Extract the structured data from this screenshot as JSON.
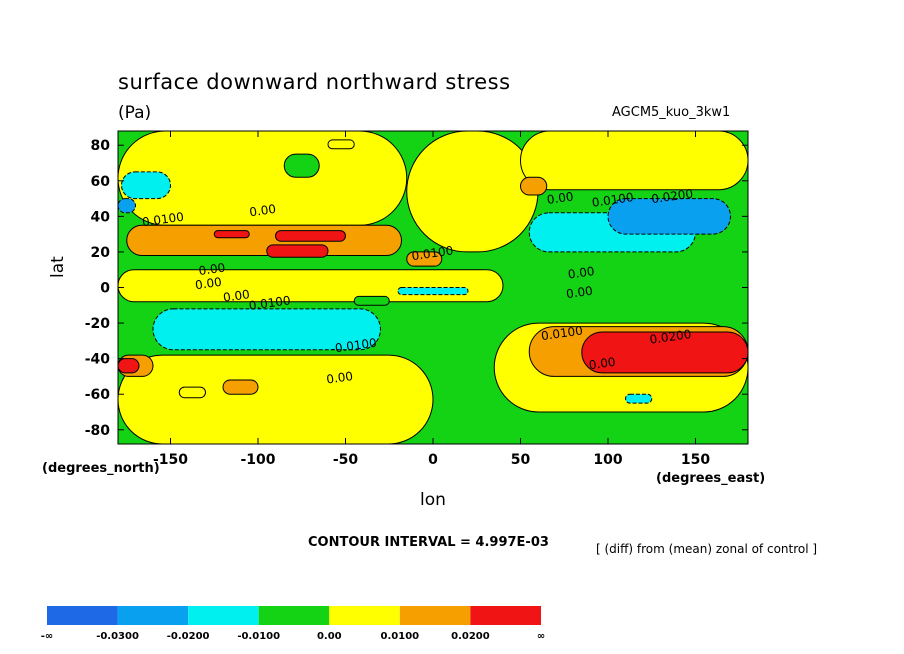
{
  "chart_data": {
    "type": "heatmap",
    "title": "surface downward northward stress",
    "units": "(Pa)",
    "model_label": "AGCM5_kuo_3kw1",
    "xlabel": "lon",
    "ylabel": "lat",
    "x_unit_label": "(degrees_east)",
    "y_unit_label": "(degrees_north)",
    "xlim": [
      -180,
      180
    ],
    "ylim": [
      -88,
      88
    ],
    "x_ticks": [
      -150,
      -100,
      -50,
      0,
      50,
      100,
      150
    ],
    "x_tick_labels": [
      "-150",
      "-100",
      "-50",
      "0",
      "50",
      "100",
      "150"
    ],
    "y_ticks": [
      80,
      60,
      40,
      20,
      0,
      -20,
      -40,
      -60,
      -80
    ],
    "y_tick_labels": [
      "80",
      "60",
      "40",
      "20",
      "0",
      "-20",
      "-40",
      "-60",
      "-80"
    ],
    "contour_interval_text": "CONTOUR INTERVAL = 4.997E-03",
    "note": "[ (diff) from (mean) zonal of control ]",
    "contour_labels": [
      {
        "text": "0.00",
        "lon": -97,
        "lat": 41
      },
      {
        "text": "0.0100",
        "lon": -154,
        "lat": 36
      },
      {
        "text": "0.00",
        "lon": -126,
        "lat": 8
      },
      {
        "text": "0.00",
        "lon": -128,
        "lat": 0
      },
      {
        "text": "0.00",
        "lon": -112,
        "lat": -7
      },
      {
        "text": "0.0100",
        "lon": -93,
        "lat": -11
      },
      {
        "text": "-0.0100",
        "lon": -45,
        "lat": -35
      },
      {
        "text": "0.00",
        "lon": -53,
        "lat": -53
      },
      {
        "text": "0.0100",
        "lon": 0,
        "lat": 17
      },
      {
        "text": "0.00",
        "lon": 73,
        "lat": 48
      },
      {
        "text": "0.0100",
        "lon": 103,
        "lat": 47
      },
      {
        "text": "0.0200",
        "lon": 137,
        "lat": 49
      },
      {
        "text": "0.00",
        "lon": 85,
        "lat": 6
      },
      {
        "text": "0.00",
        "lon": 84,
        "lat": -5
      },
      {
        "text": "0.0100",
        "lon": 74,
        "lat": -28
      },
      {
        "text": "0.00",
        "lon": 97,
        "lat": -45
      },
      {
        "text": "0.0200",
        "lon": 136,
        "lat": -30
      }
    ],
    "colorbar": {
      "colors": [
        "#1e6ae6",
        "#0aa0f0",
        "#00f0f0",
        "#14d214",
        "#ffff00",
        "#f5a000",
        "#f01414"
      ],
      "labels": [
        "-∞",
        "-0.0300",
        "-0.0200",
        "-0.0100",
        "0.00",
        "0.0100",
        "0.0200",
        "∞"
      ]
    },
    "regions": [
      {
        "level": 3,
        "lon": [
          -180,
          180
        ],
        "lat": [
          -88,
          88
        ]
      },
      {
        "level": 4,
        "lon": [
          -180,
          -15
        ],
        "lat": [
          35,
          88
        ]
      },
      {
        "level": 4,
        "lon": [
          -15,
          60
        ],
        "lat": [
          20,
          88
        ]
      },
      {
        "level": 4,
        "lon": [
          50,
          180
        ],
        "lat": [
          55,
          88
        ]
      },
      {
        "level": 4,
        "lon": [
          -180,
          40
        ],
        "lat": [
          -8,
          10
        ]
      },
      {
        "level": 4,
        "lon": [
          -180,
          0
        ],
        "lat": [
          -88,
          -38
        ]
      },
      {
        "level": 4,
        "lon": [
          35,
          180
        ],
        "lat": [
          -70,
          -20
        ]
      },
      {
        "level": 5,
        "lon": [
          -175,
          -18
        ],
        "lat": [
          18,
          35
        ]
      },
      {
        "level": 5,
        "lon": [
          -15,
          5
        ],
        "lat": [
          12,
          20
        ]
      },
      {
        "level": 5,
        "lon": [
          55,
          180
        ],
        "lat": [
          -50,
          -22
        ]
      },
      {
        "level": 5,
        "lon": [
          -180,
          -160
        ],
        "lat": [
          -50,
          -38
        ]
      },
      {
        "level": 5,
        "lon": [
          50,
          65
        ],
        "lat": [
          52,
          62
        ]
      },
      {
        "level": 6,
        "lon": [
          -125,
          -105
        ],
        "lat": [
          28,
          32
        ]
      },
      {
        "level": 6,
        "lon": [
          -90,
          -50
        ],
        "lat": [
          26,
          32
        ]
      },
      {
        "level": 6,
        "lon": [
          -95,
          -60
        ],
        "lat": [
          17,
          24
        ]
      },
      {
        "level": 6,
        "lon": [
          85,
          180
        ],
        "lat": [
          -48,
          -25
        ]
      },
      {
        "level": 6,
        "lon": [
          -180,
          -168
        ],
        "lat": [
          -48,
          -40
        ]
      },
      {
        "level": 2,
        "lon": [
          -160,
          -30
        ],
        "lat": [
          -35,
          -12
        ]
      },
      {
        "level": 2,
        "lon": [
          55,
          150
        ],
        "lat": [
          20,
          42
        ]
      },
      {
        "level": 2,
        "lon": [
          -178,
          -150
        ],
        "lat": [
          50,
          65
        ]
      },
      {
        "level": 2,
        "lon": [
          -20,
          20
        ],
        "lat": [
          -4,
          0
        ]
      },
      {
        "level": 2,
        "lon": [
          110,
          125
        ],
        "lat": [
          -65,
          -60
        ]
      },
      {
        "level": 1,
        "lon": [
          100,
          170
        ],
        "lat": [
          30,
          50
        ]
      },
      {
        "level": 1,
        "lon": [
          -180,
          -170
        ],
        "lat": [
          42,
          50
        ]
      },
      {
        "level": 4,
        "lon": [
          -145,
          -130
        ],
        "lat": [
          -62,
          -56
        ]
      },
      {
        "level": 5,
        "lon": [
          -120,
          -100
        ],
        "lat": [
          -60,
          -52
        ]
      },
      {
        "level": 4,
        "lon": [
          -60,
          -45
        ],
        "lat": [
          78,
          83
        ]
      },
      {
        "level": 3,
        "lon": [
          -85,
          -65
        ],
        "lat": [
          62,
          75
        ]
      },
      {
        "level": 3,
        "lon": [
          -45,
          -25
        ],
        "lat": [
          -10,
          -5
        ]
      }
    ]
  }
}
